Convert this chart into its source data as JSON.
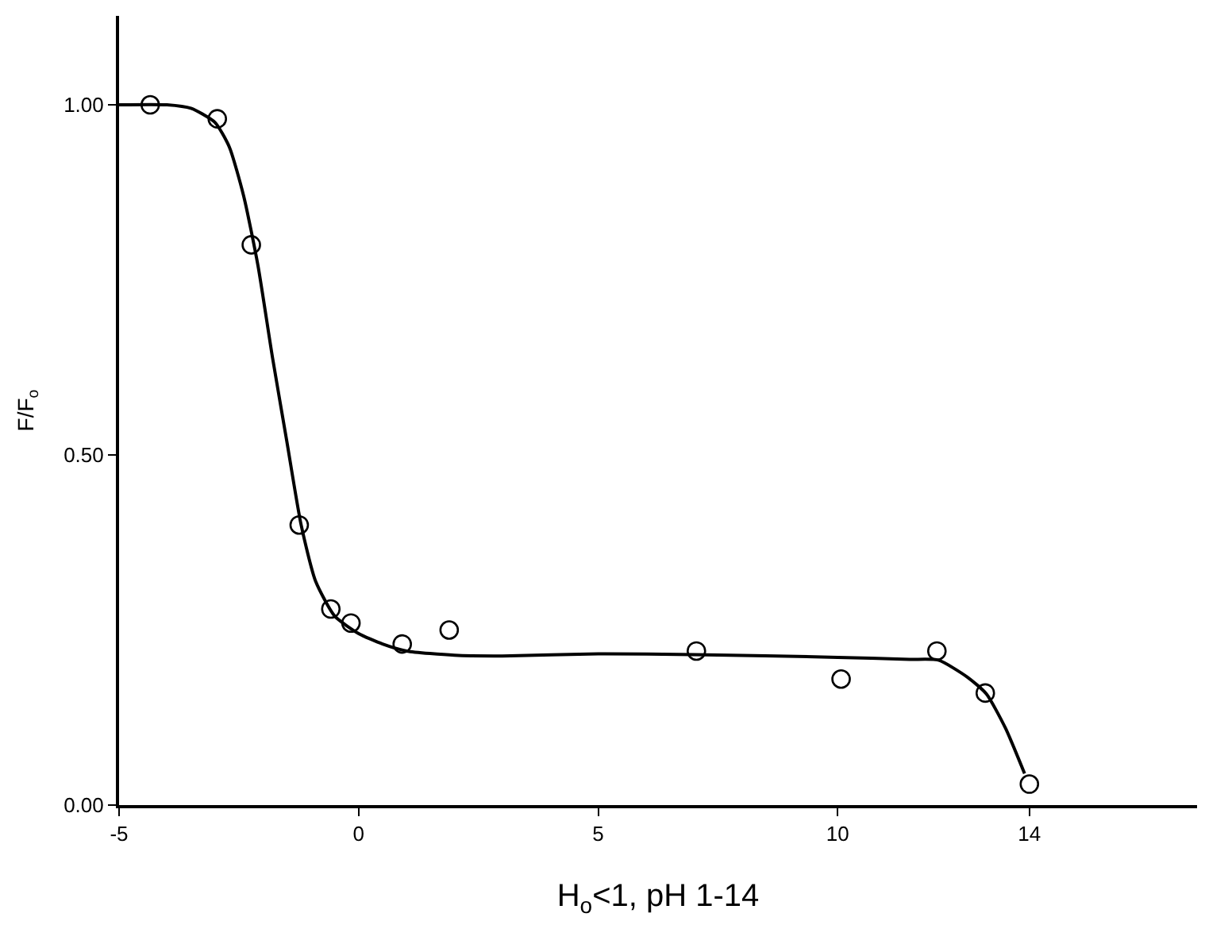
{
  "chart_data": {
    "type": "scatter",
    "xlabel": "H$_{o}$<1, pH 1-14",
    "ylabel": "F/F$_{o}$",
    "xlim": [
      -5,
      17.5
    ],
    "xticks": [
      -5,
      0,
      5,
      10,
      14
    ],
    "ylim": [
      0,
      1.127
    ],
    "yticks": [
      {
        "value": 0,
        "label": "0.00"
      },
      {
        "value": 0.5,
        "label": "0.50"
      },
      {
        "value": 1,
        "label": "1.00"
      }
    ],
    "marker": "circle",
    "series": [
      {
        "color": "#000000",
        "x": [
          -4.35,
          -2.95,
          -2.24,
          -1.24,
          -0.58,
          -0.16,
          0.91,
          1.89,
          7.05,
          10.07,
          12.07,
          13.08,
          14.0
        ],
        "values": [
          1.0,
          0.98,
          0.8,
          0.4,
          0.28,
          0.26,
          0.23,
          0.25,
          0.22,
          0.18,
          0.22,
          0.16,
          0.03
        ]
      },
      {
        "type": "line",
        "color": "#000000",
        "marker": "none",
        "line_style": "solid",
        "x": [
          -5,
          -4,
          -3.5,
          -3,
          -2.7,
          -2.4,
          -2.1,
          -1.8,
          -1.5,
          -1.2,
          -0.9,
          -0.5,
          0,
          0.5,
          1,
          2,
          3,
          5,
          7,
          10,
          11.5,
          12.1,
          12.7,
          13.1,
          13.5,
          13.9
        ],
        "values": [
          1.0,
          1.0,
          0.995,
          0.975,
          0.94,
          0.87,
          0.77,
          0.64,
          0.52,
          0.4,
          0.32,
          0.27,
          0.245,
          0.23,
          0.22,
          0.214,
          0.213,
          0.216,
          0.215,
          0.211,
          0.208,
          0.207,
          0.183,
          0.159,
          0.11,
          0.045
        ]
      }
    ]
  }
}
